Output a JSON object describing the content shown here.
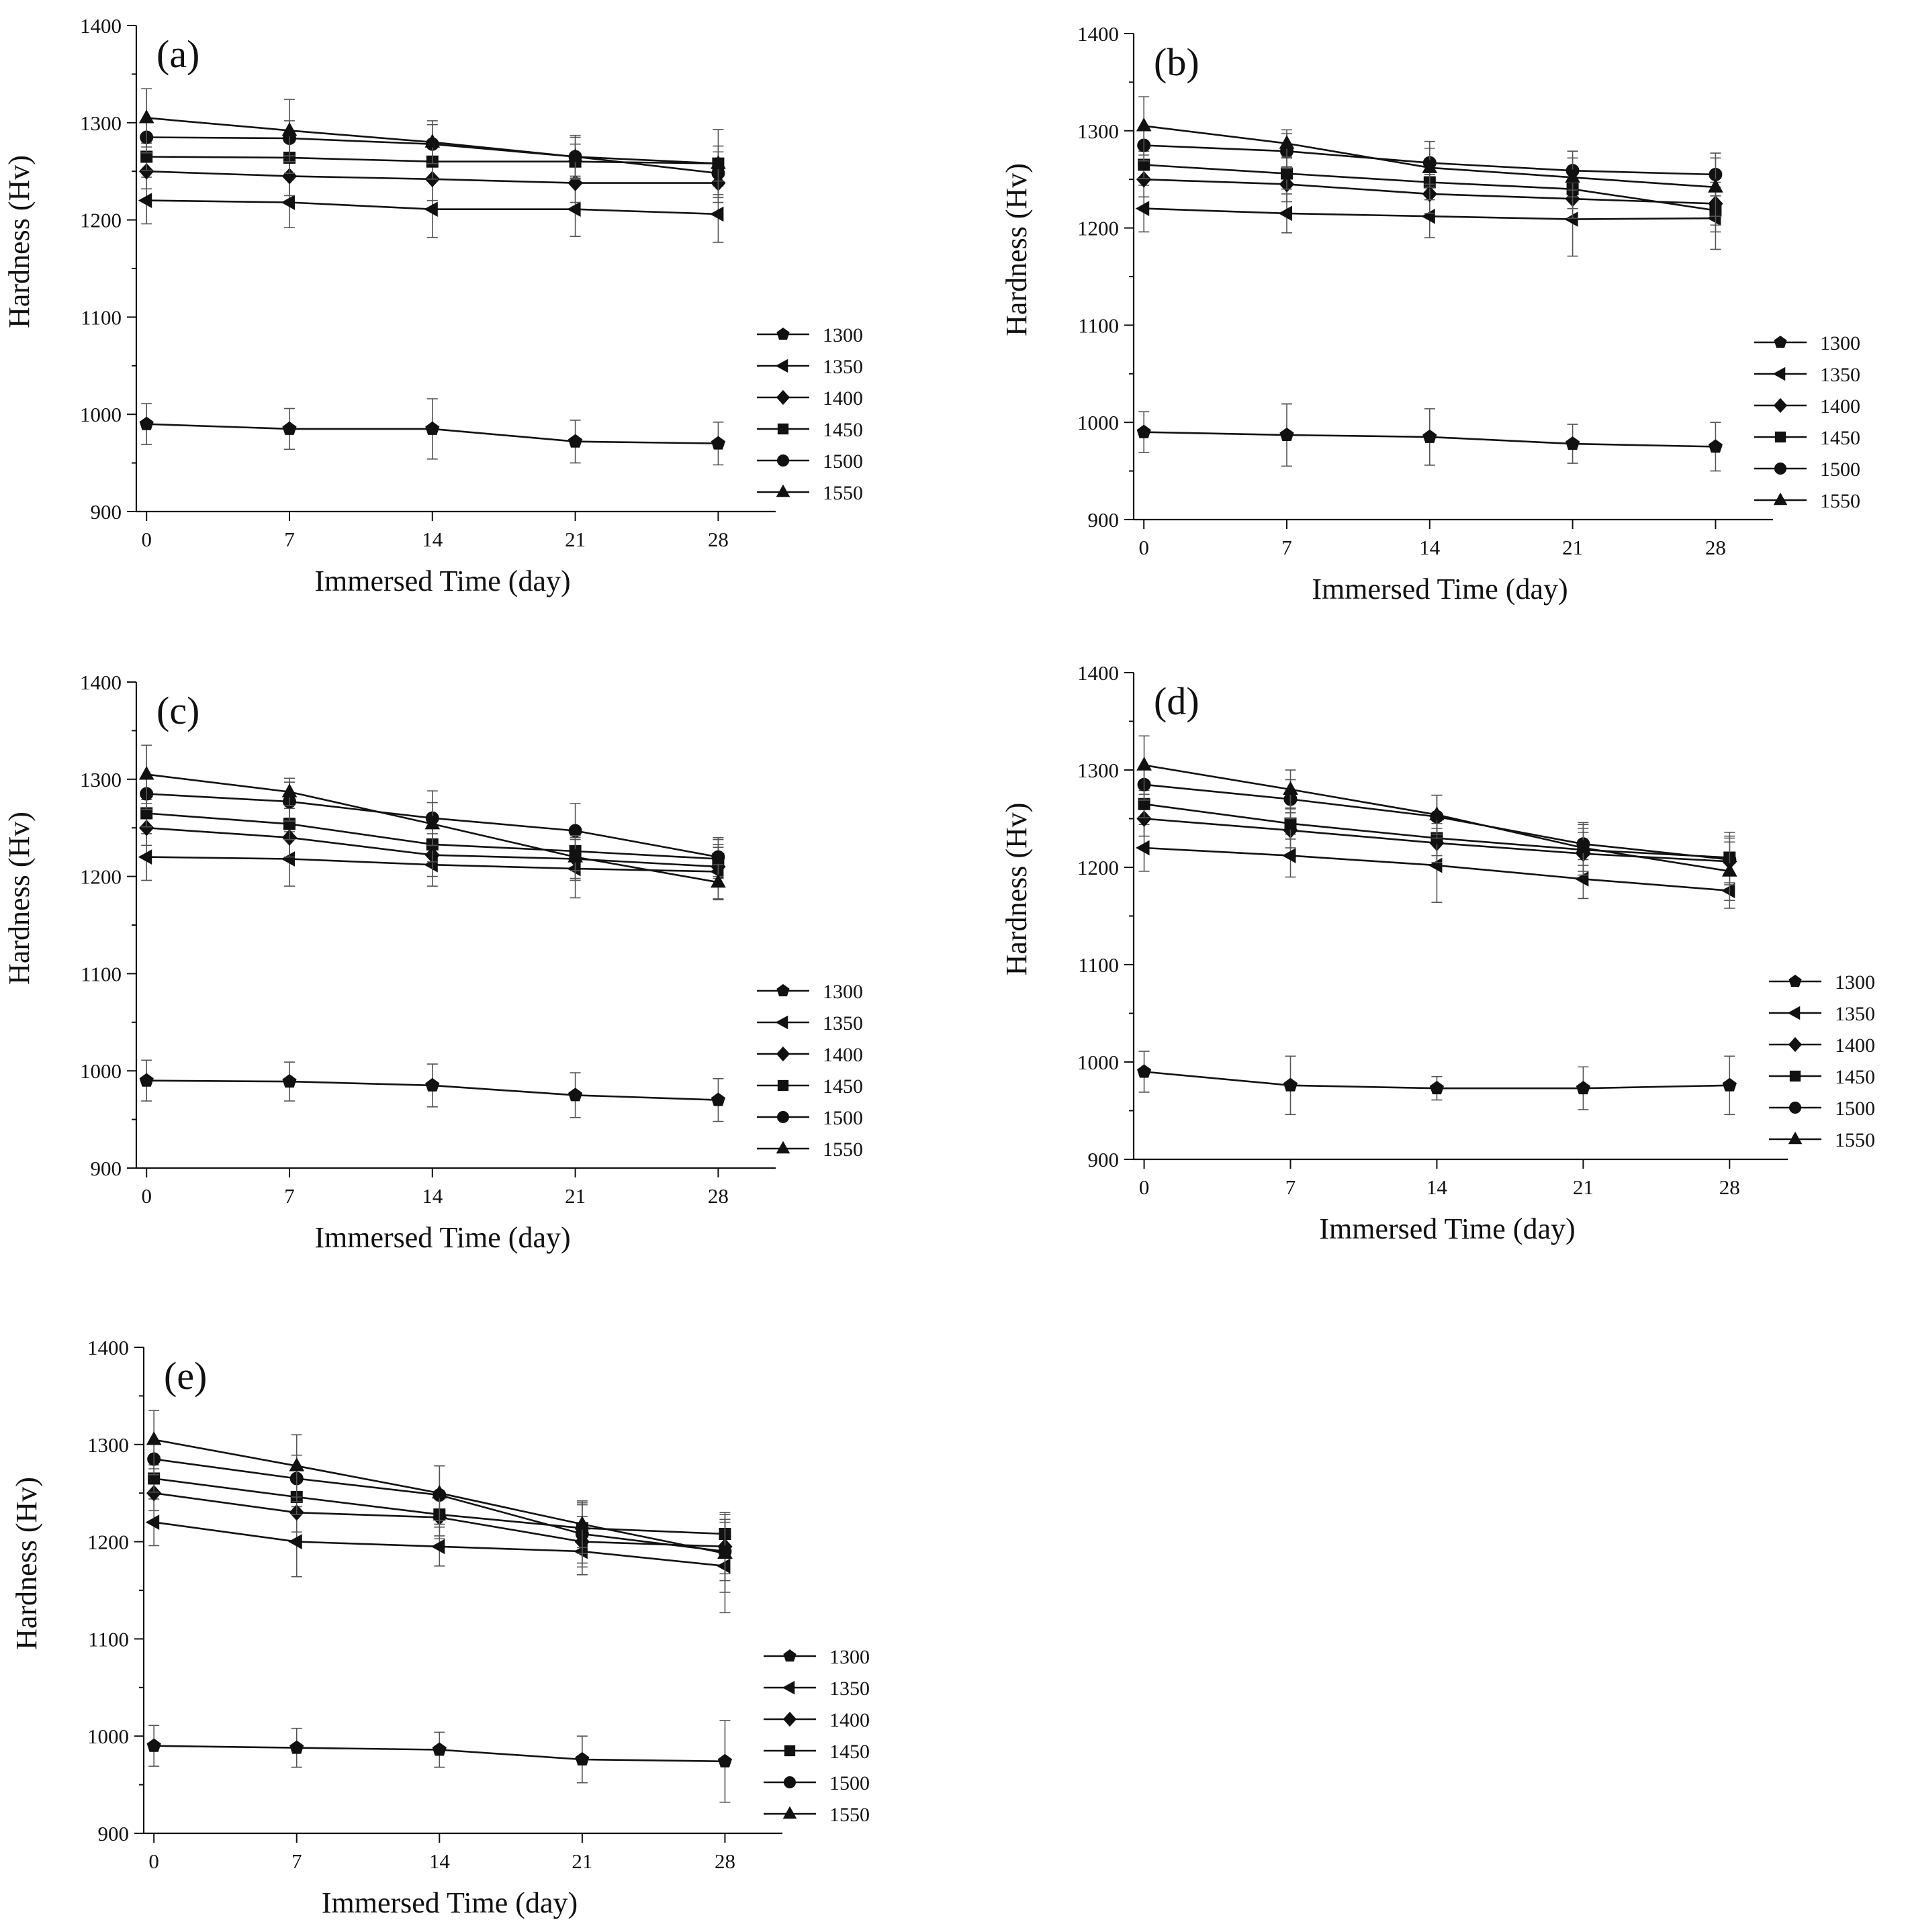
{
  "chart_data": [
    {
      "type": "line",
      "panel_label": "(a)",
      "xlabel": "Immersed Time (day)",
      "ylabel": "Hardness (Hv)",
      "x": [
        0,
        7,
        14,
        21,
        28
      ],
      "xticks": [
        "0",
        "7",
        "14",
        "21",
        "28"
      ],
      "yticks": [
        "900",
        "1000",
        "1100",
        "1200",
        "1300",
        "1400"
      ],
      "xlim": [
        -0.5,
        29.5
      ],
      "ylim": [
        900,
        1400
      ],
      "legend_position": "right",
      "series": [
        {
          "name": "1300",
          "marker": "pentagon",
          "values": [
            990,
            985,
            985,
            972,
            970
          ],
          "errors": [
            21,
            21,
            31,
            22,
            22
          ]
        },
        {
          "name": "1350",
          "marker": "triangle-left",
          "values": [
            1220,
            1218,
            1211,
            1211,
            1206
          ],
          "errors": [
            24,
            26,
            29,
            28,
            29
          ]
        },
        {
          "name": "1400",
          "marker": "diamond",
          "values": [
            1250,
            1245,
            1242,
            1238,
            1238
          ],
          "errors": [
            18,
            20,
            22,
            20,
            20
          ]
        },
        {
          "name": "1450",
          "marker": "square",
          "values": [
            1265,
            1264,
            1260,
            1260,
            1258
          ],
          "errors": [
            14,
            16,
            18,
            18,
            18
          ]
        },
        {
          "name": "1500",
          "marker": "circle",
          "values": [
            1285,
            1284,
            1278,
            1265,
            1248
          ],
          "errors": [
            16,
            18,
            20,
            20,
            22
          ]
        },
        {
          "name": "1550",
          "marker": "triangle-up",
          "values": [
            1305,
            1292,
            1280,
            1265,
            1258
          ],
          "errors": [
            30,
            32,
            22,
            22,
            35
          ]
        }
      ]
    },
    {
      "type": "line",
      "panel_label": "(b)",
      "xlabel": "Immersed Time (day)",
      "ylabel": "Hardness (Hv)",
      "x": [
        0,
        7,
        14,
        21,
        28
      ],
      "xticks": [
        "0",
        "7",
        "14",
        "21",
        "28"
      ],
      "yticks": [
        "900",
        "1000",
        "1100",
        "1200",
        "1300",
        "1400"
      ],
      "xlim": [
        -0.5,
        29.5
      ],
      "ylim": [
        900,
        1400
      ],
      "legend_position": "right",
      "series": [
        {
          "name": "1300",
          "marker": "pentagon",
          "values": [
            990,
            987,
            985,
            978,
            975
          ],
          "errors": [
            21,
            32,
            29,
            20,
            25
          ]
        },
        {
          "name": "1350",
          "marker": "triangle-left",
          "values": [
            1220,
            1215,
            1212,
            1209,
            1210
          ],
          "errors": [
            24,
            20,
            22,
            38,
            32
          ]
        },
        {
          "name": "1400",
          "marker": "diamond",
          "values": [
            1250,
            1245,
            1235,
            1230,
            1225
          ],
          "errors": [
            18,
            18,
            20,
            20,
            22
          ]
        },
        {
          "name": "1450",
          "marker": "square",
          "values": [
            1265,
            1256,
            1247,
            1240,
            1218
          ],
          "errors": [
            14,
            16,
            18,
            20,
            22
          ]
        },
        {
          "name": "1500",
          "marker": "circle",
          "values": [
            1285,
            1279,
            1267,
            1259,
            1255
          ],
          "errors": [
            16,
            18,
            22,
            20,
            22
          ]
        },
        {
          "name": "1550",
          "marker": "triangle-up",
          "values": [
            1305,
            1287,
            1262,
            1252,
            1242
          ],
          "errors": [
            30,
            14,
            20,
            20,
            30
          ]
        }
      ]
    },
    {
      "type": "line",
      "panel_label": "(c)",
      "xlabel": "Immersed Time (day)",
      "ylabel": "Hardness (Hv)",
      "x": [
        0,
        7,
        14,
        21,
        28
      ],
      "xticks": [
        "0",
        "7",
        "14",
        "21",
        "28"
      ],
      "yticks": [
        "900",
        "1000",
        "1100",
        "1200",
        "1300",
        "1400"
      ],
      "xlim": [
        -0.5,
        29.5
      ],
      "ylim": [
        900,
        1400
      ],
      "legend_position": "right",
      "series": [
        {
          "name": "1300",
          "marker": "pentagon",
          "values": [
            990,
            989,
            985,
            975,
            970
          ],
          "errors": [
            21,
            20,
            22,
            23,
            22
          ]
        },
        {
          "name": "1350",
          "marker": "triangle-left",
          "values": [
            1220,
            1218,
            1212,
            1208,
            1205
          ],
          "errors": [
            24,
            28,
            22,
            30,
            28
          ]
        },
        {
          "name": "1400",
          "marker": "diamond",
          "values": [
            1250,
            1240,
            1222,
            1218,
            1210
          ],
          "errors": [
            18,
            20,
            22,
            22,
            20
          ]
        },
        {
          "name": "1450",
          "marker": "square",
          "values": [
            1265,
            1254,
            1233,
            1226,
            1218
          ],
          "errors": [
            14,
            16,
            18,
            20,
            20
          ]
        },
        {
          "name": "1500",
          "marker": "circle",
          "values": [
            1285,
            1277,
            1260,
            1247,
            1220
          ],
          "errors": [
            16,
            20,
            28,
            28,
            20
          ]
        },
        {
          "name": "1550",
          "marker": "triangle-up",
          "values": [
            1305,
            1287,
            1254,
            1220,
            1194
          ],
          "errors": [
            30,
            14,
            22,
            22,
            18
          ]
        }
      ]
    },
    {
      "type": "line",
      "panel_label": "(d)",
      "xlabel": "Immersed Time (day)",
      "ylabel": "Hardness (Hv)",
      "x": [
        0,
        7,
        14,
        21,
        28
      ],
      "xticks": [
        "0",
        "7",
        "14",
        "21",
        "28"
      ],
      "yticks": [
        "900",
        "1000",
        "1100",
        "1200",
        "1300",
        "1400"
      ],
      "xlim": [
        -0.5,
        29.5
      ],
      "ylim": [
        900,
        1400
      ],
      "legend_position": "right",
      "series": [
        {
          "name": "1300",
          "marker": "pentagon",
          "values": [
            990,
            976,
            973,
            973,
            976
          ],
          "errors": [
            21,
            30,
            12,
            22,
            30
          ]
        },
        {
          "name": "1350",
          "marker": "triangle-left",
          "values": [
            1220,
            1212,
            1202,
            1188,
            1176
          ],
          "errors": [
            24,
            22,
            38,
            20,
            18
          ]
        },
        {
          "name": "1400",
          "marker": "diamond",
          "values": [
            1250,
            1238,
            1225,
            1214,
            1206
          ],
          "errors": [
            18,
            18,
            20,
            22,
            24
          ]
        },
        {
          "name": "1450",
          "marker": "square",
          "values": [
            1265,
            1245,
            1230,
            1218,
            1210
          ],
          "errors": [
            14,
            16,
            18,
            22,
            26
          ]
        },
        {
          "name": "1500",
          "marker": "circle",
          "values": [
            1285,
            1270,
            1252,
            1224,
            1208
          ],
          "errors": [
            16,
            20,
            22,
            22,
            24
          ]
        },
        {
          "name": "1550",
          "marker": "triangle-up",
          "values": [
            1305,
            1280,
            1254,
            1220,
            1196
          ],
          "errors": [
            30,
            20,
            20,
            24,
            30
          ]
        }
      ]
    },
    {
      "type": "line",
      "panel_label": "(e)",
      "xlabel": "Immersed Time (day)",
      "ylabel": "Hardness (Hv)",
      "x": [
        0,
        7,
        14,
        21,
        28
      ],
      "xticks": [
        "0",
        "7",
        "14",
        "21",
        "28"
      ],
      "yticks": [
        "900",
        "1000",
        "1100",
        "1200",
        "1300",
        "1400"
      ],
      "xlim": [
        -0.5,
        29.5
      ],
      "ylim": [
        900,
        1400
      ],
      "legend_position": "right",
      "series": [
        {
          "name": "1300",
          "marker": "pentagon",
          "values": [
            990,
            988,
            986,
            976,
            974
          ],
          "errors": [
            21,
            20,
            18,
            24,
            42
          ]
        },
        {
          "name": "1350",
          "marker": "triangle-left",
          "values": [
            1220,
            1200,
            1195,
            1190,
            1175
          ],
          "errors": [
            24,
            36,
            20,
            24,
            48
          ]
        },
        {
          "name": "1400",
          "marker": "diamond",
          "values": [
            1250,
            1230,
            1225,
            1200,
            1195
          ],
          "errors": [
            18,
            20,
            22,
            26,
            28
          ]
        },
        {
          "name": "1450",
          "marker": "square",
          "values": [
            1265,
            1246,
            1228,
            1214,
            1208
          ],
          "errors": [
            14,
            18,
            22,
            26,
            22
          ]
        },
        {
          "name": "1500",
          "marker": "circle",
          "values": [
            1285,
            1265,
            1248,
            1208,
            1190
          ],
          "errors": [
            16,
            24,
            30,
            30,
            30
          ]
        },
        {
          "name": "1550",
          "marker": "triangle-up",
          "values": [
            1305,
            1278,
            1250,
            1218,
            1188
          ],
          "errors": [
            30,
            32,
            28,
            24,
            40
          ]
        }
      ]
    }
  ]
}
